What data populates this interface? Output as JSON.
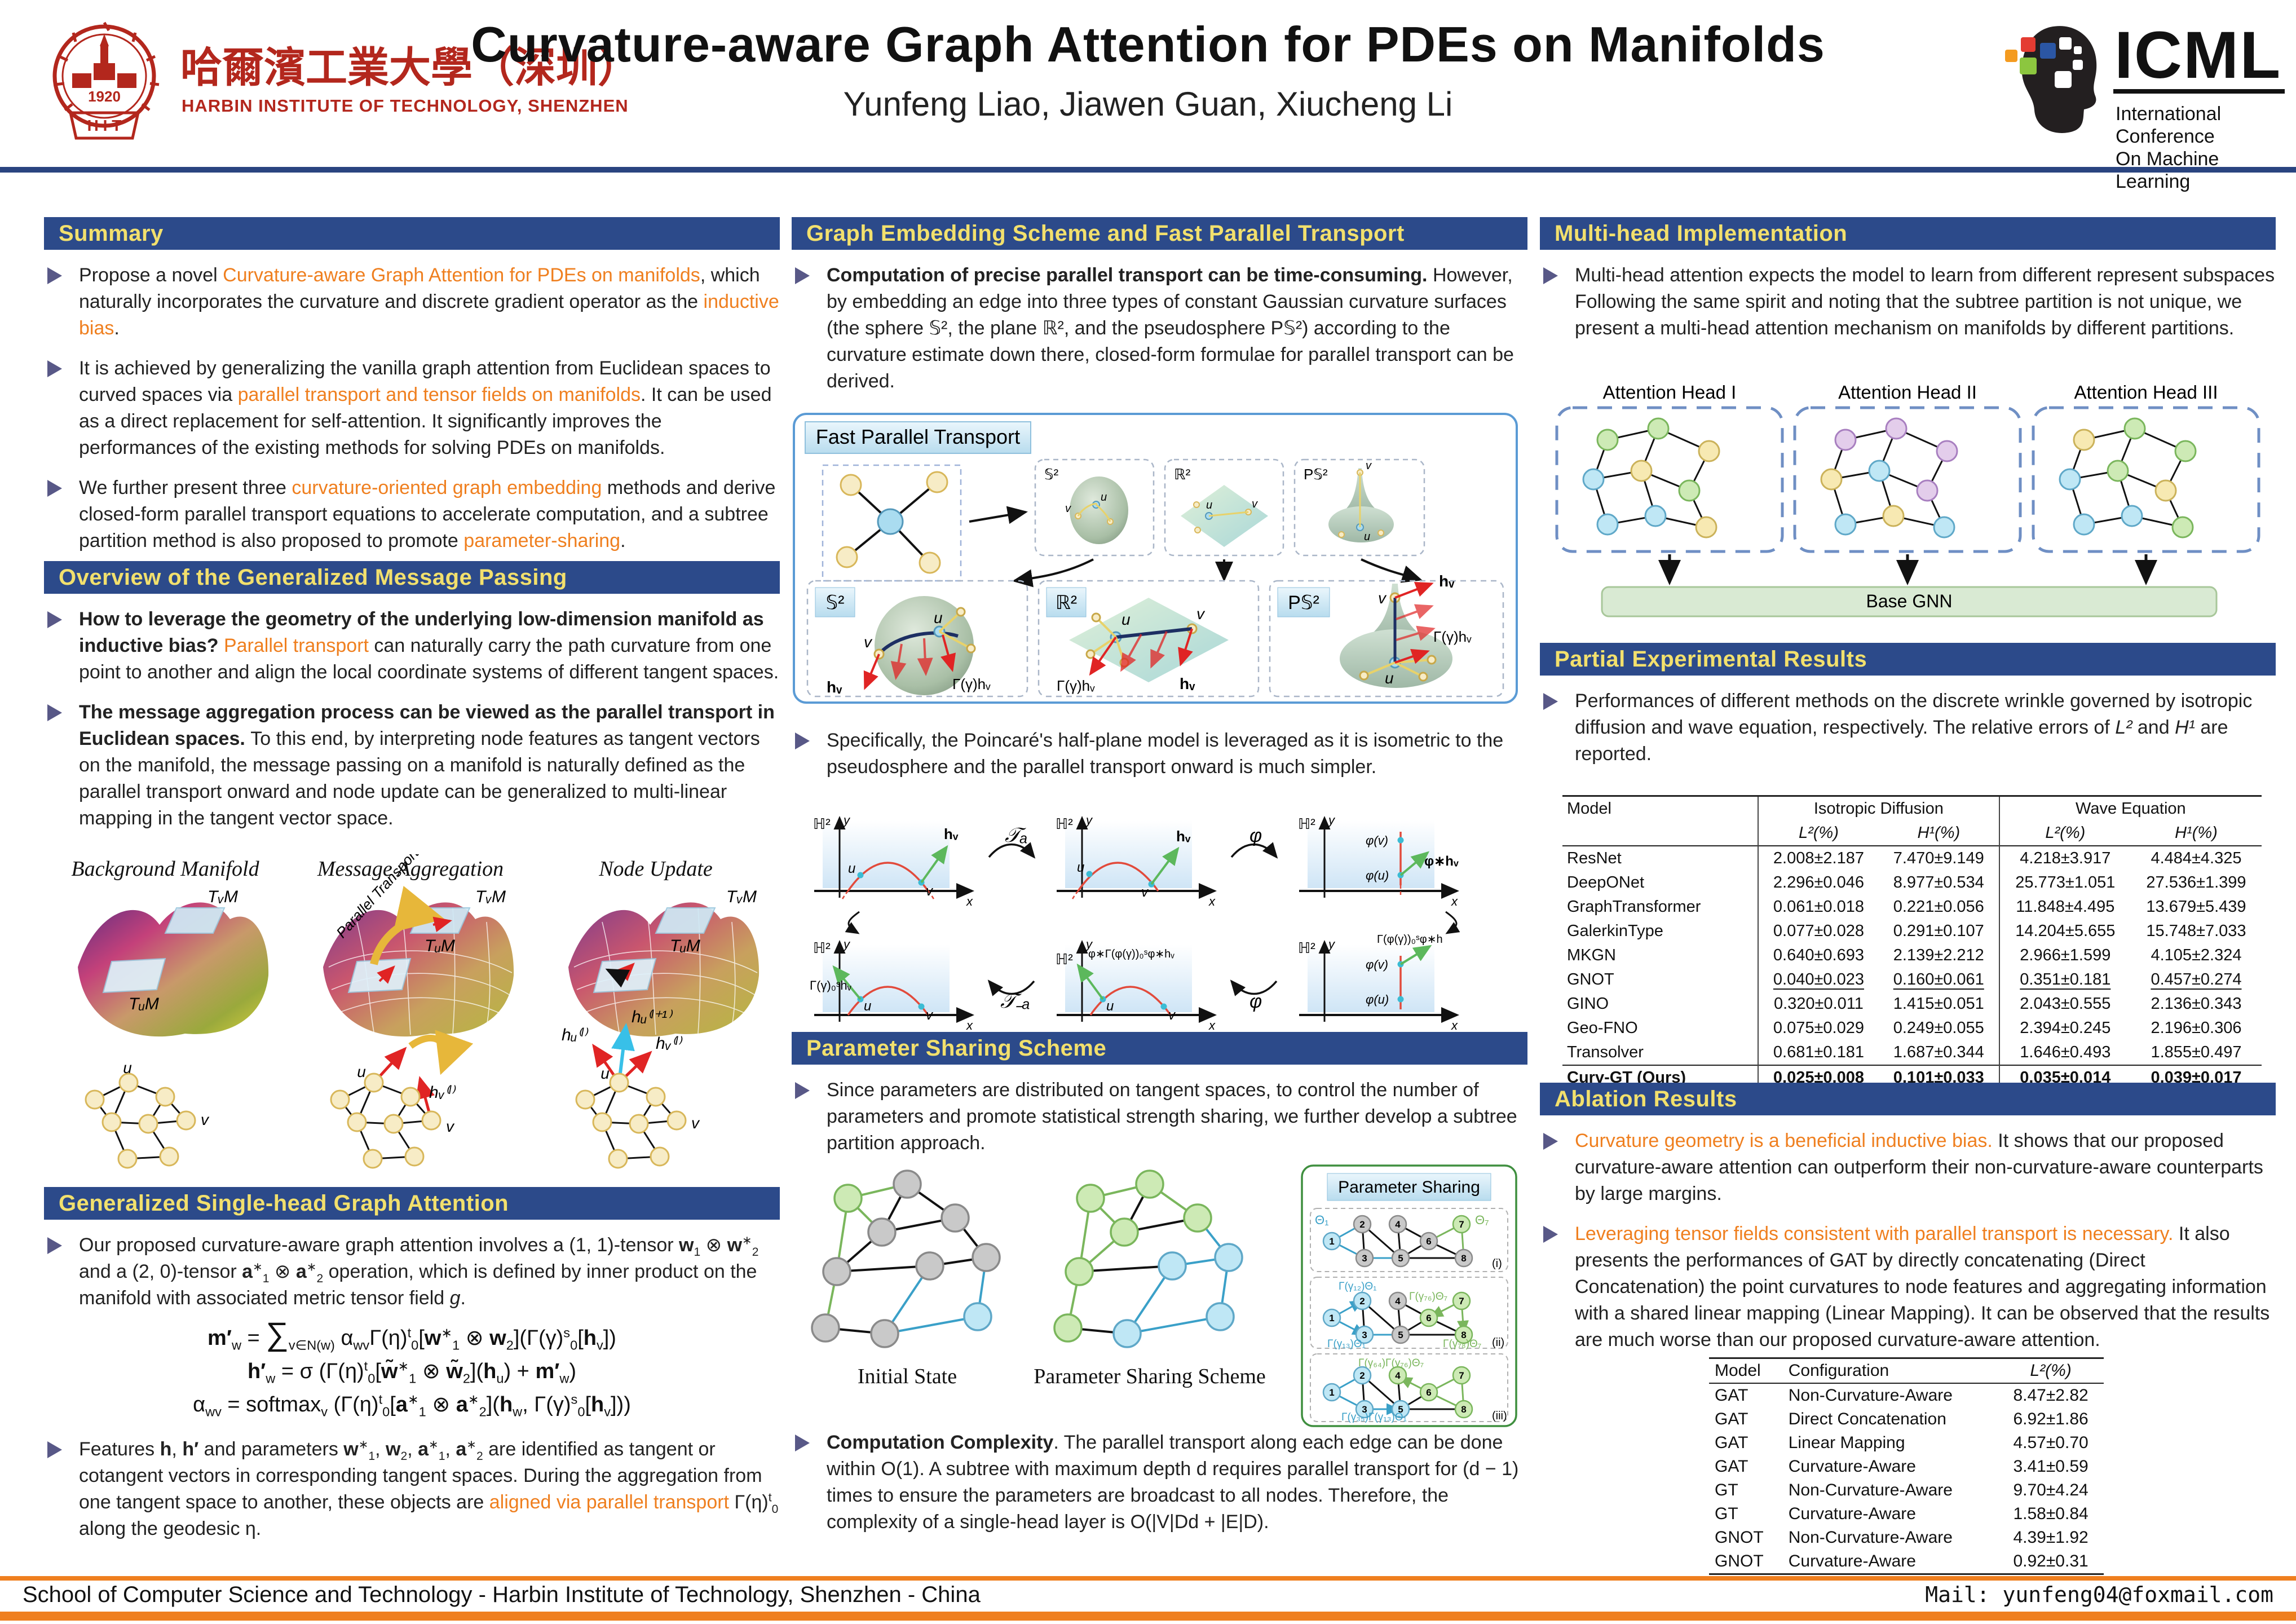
{
  "header": {
    "title": "Curvature-aware Graph Attention for PDEs on Manifolds",
    "authors": "Yunfeng Liao, Jiawen Guan, Xiucheng Li",
    "hit": {
      "cn": "哈爾濱工業大學（深圳）",
      "en": "HARBIN INSTITUTE OF TECHNOLOGY, SHENZHEN",
      "year": "1920",
      "abbr": "H I T"
    },
    "icml": {
      "name": "ICML",
      "line1": "International Conference",
      "line2": "On Machine Learning"
    }
  },
  "left": {
    "summary": {
      "title": "Summary",
      "b1": [
        {
          "t": "Propose a novel "
        },
        {
          "t": "Curvature-aware Graph Attention for PDEs on manifolds",
          "c": "o"
        },
        {
          "t": ", which naturally incorporates the curvature and discrete gradient operator as the "
        },
        {
          "t": "inductive bias",
          "c": "o"
        },
        {
          "t": "."
        }
      ],
      "b2": [
        {
          "t": "It is achieved by generalizing the vanilla graph attention from Euclidean spaces to curved spaces via "
        },
        {
          "t": "parallel transport and tensor fields on manifolds",
          "c": "o"
        },
        {
          "t": ". It can be used as a direct replacement for self-attention. It significantly improves the performances of the existing methods for solving PDEs on manifolds."
        }
      ],
      "b3": [
        {
          "t": "We further present three "
        },
        {
          "t": "curvature-oriented graph embedding",
          "c": "o"
        },
        {
          "t": " methods and derive closed-form parallel transport equations to accelerate computation, and a subtree partition method is also proposed to promote "
        },
        {
          "t": "parameter-sharing",
          "c": "o"
        },
        {
          "t": "."
        }
      ]
    },
    "overview": {
      "title": "Overview of the Generalized Message Passing",
      "b1": [
        {
          "t": "How to leverage the geometry of the underlying low-dimension manifold as inductive bias? ",
          "c": "b"
        },
        {
          "t": "Parallel transport",
          "c": "o"
        },
        {
          "t": " can naturally carry the path curvature from one point to another and align the local coordinate systems of different tangent spaces."
        }
      ],
      "b2": [
        {
          "t": "The message aggregation process can be viewed as the parallel transport in Euclidean spaces. ",
          "c": "b"
        },
        {
          "t": "To this end, by interpreting node features as tangent vectors on the manifold, the message passing on a manifold is naturally defined as the parallel transport onward and node update can be generalized to multi-linear mapping in the tangent vector space."
        }
      ]
    },
    "fig": {
      "p1": "Background Manifold",
      "p2": "Message Aggregation",
      "p3": "Node Update",
      "pt": "Parallel Transport",
      "tvm": "TᵥM",
      "tum": "TᵤM",
      "u": "u",
      "v": "v",
      "hv": "hᵥ⁽ˡ⁾",
      "hu": "hᵤ⁽ˡ⁾",
      "hu1": "hᵤ⁽ˡ⁺¹⁾"
    },
    "attn": {
      "title": "Generalized Single-head Graph Attention",
      "b1": [
        {
          "t": "Our proposed curvature-aware graph attention involves a (1, 1)-tensor "
        },
        {
          "t": "w",
          "c": "b"
        },
        {
          "t": "1",
          "c": "sb"
        },
        {
          "t": " ⊗ "
        },
        {
          "t": "w",
          "c": "b"
        },
        {
          "t": "∗",
          "c": "sp"
        },
        {
          "t": "2",
          "c": "sb"
        },
        {
          "t": " and a (2, 0)-tensor "
        },
        {
          "t": "a",
          "c": "b"
        },
        {
          "t": "∗",
          "c": "sp"
        },
        {
          "t": "1",
          "c": "sb"
        },
        {
          "t": " ⊗ "
        },
        {
          "t": "a",
          "c": "b"
        },
        {
          "t": "∗",
          "c": "sp"
        },
        {
          "t": "2",
          "c": "sb"
        },
        {
          "t": " operation, which is defined by inner product on the manifold with associated metric tensor field "
        },
        {
          "t": "g",
          "c": "i"
        },
        {
          "t": "."
        }
      ],
      "eq1": [
        {
          "t": "m′",
          "c": "b"
        },
        {
          "t": "w",
          "c": "sb"
        },
        {
          "t": " = "
        },
        {
          "t": "∑",
          "c": "sum"
        },
        {
          "t": "v∈N(w)",
          "c": "sb"
        },
        {
          "t": " α"
        },
        {
          "t": "wv",
          "c": "sb"
        },
        {
          "t": "Γ(η)"
        },
        {
          "t": "t",
          "c": "sp"
        },
        {
          "t": "0",
          "c": "sb"
        },
        {
          "t": "["
        },
        {
          "t": "w",
          "c": "b"
        },
        {
          "t": "∗",
          "c": "sp"
        },
        {
          "t": "1",
          "c": "sb"
        },
        {
          "t": " ⊗ "
        },
        {
          "t": "w",
          "c": "b"
        },
        {
          "t": "2",
          "c": "sb"
        },
        {
          "t": "](Γ(γ)"
        },
        {
          "t": "s",
          "c": "sp"
        },
        {
          "t": "0",
          "c": "sb"
        },
        {
          "t": "["
        },
        {
          "t": "h",
          "c": "b"
        },
        {
          "t": "v",
          "c": "sb"
        },
        {
          "t": "])"
        }
      ],
      "eq2": [
        {
          "t": "h′",
          "c": "b"
        },
        {
          "t": "w",
          "c": "sb"
        },
        {
          "t": " = σ (Γ(η)"
        },
        {
          "t": "t",
          "c": "sp"
        },
        {
          "t": "0",
          "c": "sb"
        },
        {
          "t": "["
        },
        {
          "t": "w̃",
          "c": "b"
        },
        {
          "t": "∗",
          "c": "sp"
        },
        {
          "t": "1",
          "c": "sb"
        },
        {
          "t": " ⊗ "
        },
        {
          "t": "w̃",
          "c": "b"
        },
        {
          "t": "2",
          "c": "sb"
        },
        {
          "t": "]("
        },
        {
          "t": "h",
          "c": "b"
        },
        {
          "t": "u",
          "c": "sb"
        },
        {
          "t": ") + "
        },
        {
          "t": "m′",
          "c": "b"
        },
        {
          "t": "w",
          "c": "sb"
        },
        {
          "t": ")"
        }
      ],
      "eq3": [
        {
          "t": "α"
        },
        {
          "t": "wv",
          "c": "sb"
        },
        {
          "t": " = softmax"
        },
        {
          "t": "v",
          "c": "sb"
        },
        {
          "t": " (Γ(η)"
        },
        {
          "t": "t",
          "c": "sp"
        },
        {
          "t": "0",
          "c": "sb"
        },
        {
          "t": "["
        },
        {
          "t": "a",
          "c": "b"
        },
        {
          "t": "∗",
          "c": "sp"
        },
        {
          "t": "1",
          "c": "sb"
        },
        {
          "t": " ⊗ "
        },
        {
          "t": "a",
          "c": "b"
        },
        {
          "t": "∗",
          "c": "sp"
        },
        {
          "t": "2",
          "c": "sb"
        },
        {
          "t": "]("
        },
        {
          "t": "h",
          "c": "b"
        },
        {
          "t": "w",
          "c": "sb"
        },
        {
          "t": ", Γ(γ)"
        },
        {
          "t": "s",
          "c": "sp"
        },
        {
          "t": "0",
          "c": "sb"
        },
        {
          "t": "["
        },
        {
          "t": "h",
          "c": "b"
        },
        {
          "t": "v",
          "c": "sb"
        },
        {
          "t": "]))"
        }
      ],
      "b2": [
        {
          "t": "Features "
        },
        {
          "t": "h",
          "c": "b"
        },
        {
          "t": ", "
        },
        {
          "t": "h′",
          "c": "b"
        },
        {
          "t": " and parameters "
        },
        {
          "t": "w",
          "c": "b"
        },
        {
          "t": "∗",
          "c": "sp"
        },
        {
          "t": "1",
          "c": "sb"
        },
        {
          "t": ", "
        },
        {
          "t": "w",
          "c": "b"
        },
        {
          "t": "2",
          "c": "sb"
        },
        {
          "t": ", "
        },
        {
          "t": "a",
          "c": "b"
        },
        {
          "t": "∗",
          "c": "sp"
        },
        {
          "t": "1",
          "c": "sb"
        },
        {
          "t": ", "
        },
        {
          "t": "a",
          "c": "b"
        },
        {
          "t": "∗",
          "c": "sp"
        },
        {
          "t": "2",
          "c": "sb"
        },
        {
          "t": " are identified as tangent or cotangent vectors in corresponding tangent spaces. During the aggregation from one tangent space to another, these objects are "
        },
        {
          "t": "aligned via parallel transport",
          "c": "o"
        },
        {
          "t": " Γ(η)"
        },
        {
          "t": "t",
          "c": "sp"
        },
        {
          "t": "0",
          "c": "sb"
        },
        {
          "t": " along the geodesic η."
        }
      ]
    }
  },
  "middle": {
    "embed": {
      "title": "Graph Embedding Scheme and Fast Parallel Transport",
      "b1": [
        {
          "t": "Computation of precise parallel transport can be time-consuming.",
          "c": "b"
        },
        {
          "t": " However, by embedding an edge into three types of constant Gaussian curvature surfaces (the sphere 𝕊², the plane ℝ², and the pseudosphere P𝕊²) according to the curvature estimate down there, closed-form formulae for parallel transport can be derived."
        }
      ]
    },
    "fpt": {
      "title": "Fast Parallel Transport",
      "s2": "𝕊²",
      "r2": "ℝ²",
      "ps2": "P𝕊²",
      "u": "u",
      "v": "v",
      "hv": "hᵥ",
      "ghv": "Γ(γ)hᵥ"
    },
    "poincare": {
      "b1": [
        {
          "t": "Specifically, the Poincaré's half-plane model is leveraged as it is isometric to the pseudosphere and the parallel transport onward is much simpler."
        }
      ],
      "h2": "ℍ²",
      "x": "x",
      "y": "y",
      "u": "u",
      "v": "v",
      "hv": "hᵥ",
      "ta": "𝒯ₐ",
      "tma": "𝒯₋ₐ",
      "phi": "φ",
      "phiv": "φ(v)",
      "phiu": "φ(u)",
      "phihv": "φ∗hᵥ",
      "g1": "Γ(γ)₀ˢhᵥ",
      "g2": "φ∗Γ(φ(γ))₀ˢφ∗hᵥ",
      "g3": "Γ(φ(γ))₀ˢφ∗h"
    },
    "sharing": {
      "title": "Parameter Sharing Scheme",
      "b1": [
        {
          "t": "Since parameters are distributed on tangent spaces, to control the number of parameters and promote statistical strength sharing, we further develop a subtree partition approach."
        }
      ],
      "fig": {
        "initial": "Initial State",
        "scheme": "Parameter Sharing Scheme",
        "panel": "Parameter Sharing",
        "t1": "Θ₁",
        "t7": "Θ₇",
        "g12": "Γ(γ₁₂)Θ₁",
        "g13": "Γ(γ₁₃)Θ₁",
        "g76": "Γ(γ₇₆)Θ₇",
        "g78": "Γ(γ₇₈)Θ₇",
        "g64": "Γ(γ₆₄)Γ(γ₇₆)Θ₇",
        "g35": "Γ(γ₃₅)Γ(γ₁₃)Θ₁",
        "ri": "(i)",
        "rii": "(ii)",
        "riii": "(iii)",
        "nums": [
          "1",
          "2",
          "3",
          "4",
          "5",
          "6",
          "7",
          "8"
        ]
      }
    },
    "complexity": {
      "b1": [
        {
          "t": "Computation Complexity",
          "c": "b"
        },
        {
          "t": ". The parallel transport along each edge can be done within O(1). A subtree with maximum depth d requires parallel transport for (d − 1) times to ensure the parameters are broadcast to all nodes. Therefore, the complexity of a single-head layer is O(|V|Dd + |E|D)."
        }
      ]
    }
  },
  "right": {
    "multihead": {
      "title": "Multi-head Implementation",
      "b1": [
        {
          "t": "Multi-head attention expects the model to learn from different represent subspaces Following the same spirit and noting that the subtree partition is not unique, we present a multi-head attention mechanism on manifolds by different partitions."
        }
      ],
      "fig": {
        "h1": "Attention Head I",
        "h2": "Attention Head II",
        "h3": "Attention Head III",
        "base": "Base GNN"
      }
    },
    "results": {
      "title": "Partial Experimental Results",
      "b1": [
        {
          "t": "Performances of different methods on the discrete wrinkle governed by isotropic diffusion and wave equation, respectively. The relative errors of "
        },
        {
          "t": "L²",
          "c": "i"
        },
        {
          "t": " and "
        },
        {
          "t": "H¹",
          "c": "i"
        },
        {
          "t": " are reported."
        }
      ],
      "table": {
        "model_h": "Model",
        "g1": "Isotropic Diffusion",
        "g2": "Wave Equation",
        "l2": "L²(%)",
        "h1": "H¹(%)",
        "rows": [
          {
            "model": "ResNet",
            "values": [
              "2.008±2.187",
              "7.470±9.149",
              "4.218±3.917",
              "4.484±4.325"
            ]
          },
          {
            "model": "DeepONet",
            "values": [
              "2.296±0.046",
              "8.977±0.534",
              "25.773±1.051",
              "27.536±1.399"
            ]
          },
          {
            "model": "GraphTransformer",
            "values": [
              "0.061±0.018",
              "0.221±0.056",
              "11.848±4.495",
              "13.679±5.439"
            ]
          },
          {
            "model": "GalerkinType",
            "values": [
              "0.077±0.028",
              "0.291±0.107",
              "14.204±5.655",
              "15.748±7.033"
            ]
          },
          {
            "model": "MKGN",
            "values": [
              "0.640±0.693",
              "2.139±2.212",
              "2.966±1.599",
              "4.105±2.324"
            ]
          },
          {
            "model": "GNOT",
            "values": [
              "0.040±0.023",
              "0.160±0.061",
              "0.351±0.181",
              "0.457±0.274"
            ]
          },
          {
            "model": "GINO",
            "values": [
              "0.320±0.011",
              "1.415±0.051",
              "2.043±0.555",
              "2.136±0.343"
            ]
          },
          {
            "model": "Geo-FNO",
            "values": [
              "0.075±0.029",
              "0.249±0.055",
              "2.394±0.245",
              "2.196±0.306"
            ]
          },
          {
            "model": "Transolver",
            "values": [
              "0.681±0.181",
              "1.687±0.344",
              "1.646±0.493",
              "1.855±0.497"
            ]
          },
          {
            "model": "Curv-GT (Ours)",
            "values": [
              "0.025±0.008",
              "0.101±0.033",
              "0.035±0.014",
              "0.039±0.017"
            ]
          }
        ]
      }
    },
    "ablation": {
      "title": "Ablation Results",
      "b1": [
        {
          "t": "Curvature geometry is a beneficial inductive bias.",
          "c": "o"
        },
        {
          "t": " It shows that our proposed curvature-aware attention can outperform their non-curvature-aware counterparts by large margins."
        }
      ],
      "b2": [
        {
          "t": "Leveraging tensor fields consistent with parallel transport is necessary.",
          "c": "o"
        },
        {
          "t": " It also presents the performances of GAT by directly concatenating (Direct Concatenation) the point curvatures to node features and aggregating information with a shared linear mapping (Linear Mapping). It can be observed that the results are much worse than our proposed curvature-aware attention."
        }
      ],
      "table": {
        "model_h": "Model",
        "config_h": "Configuration",
        "l2_h": "L²(%)",
        "rows": [
          {
            "model": "GAT",
            "config": "Non-Curvature-Aware",
            "value": "8.47±2.82"
          },
          {
            "model": "GAT",
            "config": "Direct Concatenation",
            "value": "6.92±1.86"
          },
          {
            "model": "GAT",
            "config": "Linear Mapping",
            "value": "4.57±0.70"
          },
          {
            "model": "GAT",
            "config": "Curvature-Aware",
            "value": "3.41±0.59"
          },
          {
            "model": "GT",
            "config": "Non-Curvature-Aware",
            "value": "9.70±4.24"
          },
          {
            "model": "GT",
            "config": "Curvature-Aware",
            "value": "1.58±0.84"
          },
          {
            "model": "GNOT",
            "config": "Non-Curvature-Aware",
            "value": "4.39±1.92"
          },
          {
            "model": "GNOT",
            "config": "Curvature-Aware",
            "value": "0.92±0.31"
          }
        ]
      }
    }
  },
  "footer": {
    "left": "School of Computer Science and Technology - Harbin Institute of Technology, Shenzhen - China",
    "right": "Mail: yunfeng04@foxmail.com"
  },
  "colors": {
    "bar_bg": "#2c4a8a",
    "bar_text": "#f2e06d",
    "accent": "#ef7f1f",
    "hit_red": "#b3271d",
    "bullet": "#585887"
  }
}
